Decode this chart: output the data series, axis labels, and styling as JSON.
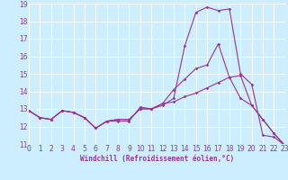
{
  "xlabel": "Windchill (Refroidissement éolien,°C)",
  "background_color": "#cceeff",
  "grid_color": "#ffffff",
  "line_color": "#993399",
  "xmin": 0,
  "xmax": 23,
  "ymin": 11,
  "ymax": 19,
  "series": [
    [
      12.9,
      12.5,
      12.4,
      12.9,
      12.8,
      12.5,
      11.9,
      12.3,
      12.3,
      12.3,
      13.1,
      13.0,
      13.2,
      13.6,
      16.6,
      18.5,
      18.8,
      18.6,
      18.7,
      15.0,
      14.4,
      11.5,
      11.4,
      10.9
    ],
    [
      12.9,
      12.5,
      12.4,
      12.9,
      12.8,
      12.5,
      11.9,
      12.3,
      12.4,
      12.4,
      13.0,
      13.0,
      13.3,
      14.1,
      14.7,
      15.3,
      15.5,
      16.7,
      14.8,
      13.6,
      13.2,
      12.4,
      11.6,
      10.9
    ],
    [
      12.9,
      12.5,
      12.4,
      12.9,
      12.8,
      12.5,
      11.9,
      12.3,
      12.4,
      12.4,
      13.0,
      13.0,
      13.3,
      13.4,
      13.7,
      13.9,
      14.2,
      14.5,
      14.8,
      14.9,
      13.2,
      12.4,
      11.6,
      10.9
    ]
  ],
  "tick_fontsize": 5.5,
  "xlabel_fontsize": 5.5,
  "marker_size": 1.8,
  "line_width": 0.8
}
